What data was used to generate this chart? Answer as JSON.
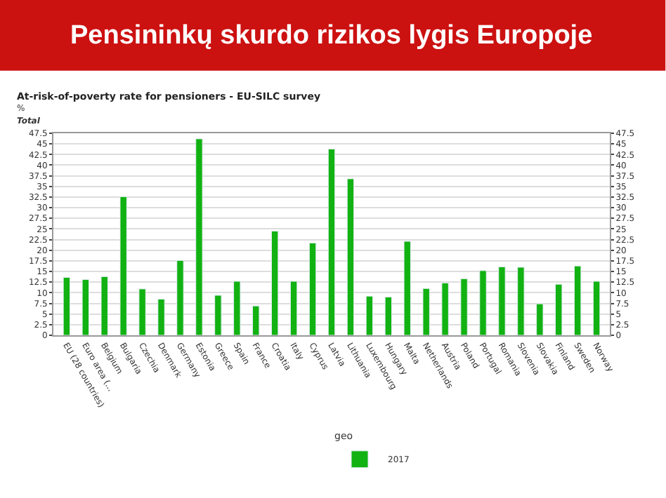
{
  "chart_data": {
    "type": "bar",
    "title": "Pensininkų skurdo rizikos lygis Europoje",
    "subtitle": "At-risk-of-poverty rate for pensioners - EU-SILC survey",
    "ylabel": "%",
    "annotations": [
      "Total"
    ],
    "legend_title": "geo",
    "categories": [
      "EU (28 countries)",
      "Euro area (...",
      "Belgium",
      "Bulgaria",
      "Czechia",
      "Denmark",
      "Germany",
      "Estonia",
      "Greece",
      "Spain",
      "France",
      "Croatia",
      "Italy",
      "Cyprus",
      "Latvia",
      "Lithuania",
      "Luxembourg",
      "Hungary",
      "Malta",
      "Netherlands",
      "Austria",
      "Poland",
      "Portugal",
      "Romania",
      "Slovenia",
      "Slovakia",
      "Finland",
      "Sweden",
      "Norway"
    ],
    "series": [
      {
        "name": "2017",
        "color": "#11b211",
        "values": [
          13.6,
          13.1,
          13.8,
          32.6,
          10.9,
          8.5,
          17.6,
          46.2,
          9.4,
          12.7,
          6.9,
          24.5,
          12.7,
          21.7,
          43.8,
          36.8,
          9.2,
          9.0,
          22.1,
          11.0,
          12.3,
          13.3,
          15.2,
          16.1,
          16.0,
          7.4,
          12.0,
          16.3,
          12.7
        ]
      }
    ],
    "ylim": [
      0,
      47.5
    ],
    "yticks": [
      0,
      2.5,
      5,
      7.5,
      10,
      12.5,
      15,
      17.5,
      20,
      22.5,
      25,
      27.5,
      30,
      32.5,
      35,
      37.5,
      40,
      42.5,
      45,
      47.5
    ],
    "y2lim": [
      0,
      47.5
    ],
    "y2ticks": [
      0,
      2.5,
      5,
      7.5,
      10,
      12.5,
      15,
      17.5,
      20,
      22.5,
      25,
      27.5,
      30,
      32.5,
      35,
      37.5,
      40,
      42.5,
      45,
      47.5
    ],
    "grid": "y",
    "legend": "bottom right"
  }
}
